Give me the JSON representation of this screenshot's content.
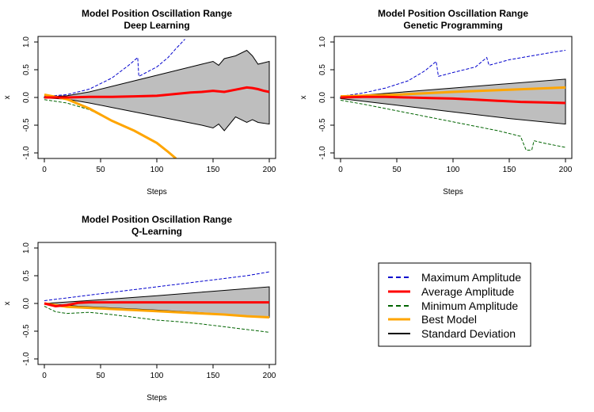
{
  "chart_data": [
    {
      "type": "line",
      "title": "Model Position Oscillation Range",
      "subtitle": "Deep Learning",
      "xlabel": "Steps",
      "ylabel": "x",
      "xlim": [
        0,
        200
      ],
      "ylim": [
        -1.0,
        1.0
      ],
      "xticks": [
        "0",
        "50",
        "100",
        "150",
        "200"
      ],
      "yticks": [
        "-1.0",
        "-0.5",
        "0.0",
        "0.5",
        "1.0"
      ],
      "grid": false,
      "series": [
        {
          "name": "Maximum Amplitude",
          "color": "#0000cd",
          "style": "dashed",
          "x": [
            0,
            20,
            40,
            60,
            75,
            83,
            84,
            100,
            110,
            117,
            125
          ],
          "y": [
            0.02,
            0.05,
            0.15,
            0.35,
            0.58,
            0.72,
            0.38,
            0.55,
            0.72,
            0.88,
            1.05
          ]
        },
        {
          "name": "Average Amplitude",
          "color": "#ff0000",
          "style": "solid",
          "x": [
            0,
            20,
            40,
            60,
            80,
            100,
            110,
            120,
            130,
            140,
            150,
            160,
            170,
            180,
            185,
            190,
            195,
            200
          ],
          "y": [
            0.0,
            0.0,
            0.01,
            0.01,
            0.02,
            0.03,
            0.05,
            0.07,
            0.09,
            0.1,
            0.12,
            0.1,
            0.14,
            0.18,
            0.17,
            0.15,
            0.12,
            0.1
          ]
        },
        {
          "name": "Minimum Amplitude",
          "color": "#006400",
          "style": "dashed",
          "x": [
            0,
            20,
            40,
            60,
            80,
            100,
            110,
            117
          ],
          "y": [
            -0.04,
            -0.1,
            -0.22,
            -0.42,
            -0.6,
            -0.82,
            -0.97,
            -1.1
          ]
        },
        {
          "name": "Best Model",
          "color": "#ffa500",
          "style": "solid",
          "x": [
            0,
            20,
            40,
            60,
            80,
            100,
            110,
            117
          ],
          "y": [
            0.05,
            -0.03,
            -0.2,
            -0.42,
            -0.6,
            -0.82,
            -0.98,
            -1.1
          ]
        },
        {
          "name": "Standard Deviation",
          "color": "#000000",
          "fill": "#bebebe",
          "style": "band",
          "x": [
            0,
            20,
            40,
            60,
            80,
            100,
            120,
            140,
            150,
            155,
            160,
            170,
            180,
            185,
            190,
            200
          ],
          "upper": [
            0.01,
            0.03,
            0.1,
            0.2,
            0.3,
            0.4,
            0.5,
            0.6,
            0.65,
            0.58,
            0.7,
            0.75,
            0.85,
            0.75,
            0.6,
            0.65
          ],
          "lower": [
            -0.01,
            -0.03,
            -0.1,
            -0.18,
            -0.26,
            -0.34,
            -0.42,
            -0.5,
            -0.55,
            -0.48,
            -0.6,
            -0.35,
            -0.45,
            -0.4,
            -0.45,
            -0.48
          ]
        }
      ]
    },
    {
      "type": "line",
      "title": "Model Position Oscillation Range",
      "subtitle": "Genetic Programming",
      "xlabel": "Steps",
      "ylabel": "x",
      "xlim": [
        0,
        200
      ],
      "ylim": [
        -1.0,
        1.0
      ],
      "xticks": [
        "0",
        "50",
        "100",
        "150",
        "200"
      ],
      "yticks": [
        "-1.0",
        "-0.5",
        "0.0",
        "0.5",
        "1.0"
      ],
      "grid": false,
      "series": [
        {
          "name": "Maximum Amplitude",
          "color": "#0000cd",
          "style": "dashed",
          "x": [
            0,
            20,
            40,
            60,
            75,
            85,
            87,
            100,
            120,
            130,
            132,
            150,
            170,
            190,
            200
          ],
          "y": [
            0.02,
            0.08,
            0.17,
            0.3,
            0.48,
            0.65,
            0.38,
            0.45,
            0.55,
            0.72,
            0.58,
            0.68,
            0.75,
            0.82,
            0.85
          ]
        },
        {
          "name": "Average Amplitude",
          "color": "#ff0000",
          "style": "solid",
          "x": [
            0,
            20,
            40,
            60,
            80,
            100,
            120,
            140,
            160,
            180,
            200
          ],
          "y": [
            0.0,
            0.01,
            0.01,
            0.0,
            -0.01,
            -0.02,
            -0.04,
            -0.06,
            -0.08,
            -0.09,
            -0.1
          ]
        },
        {
          "name": "Minimum Amplitude",
          "color": "#006400",
          "style": "dashed",
          "x": [
            0,
            20,
            40,
            60,
            80,
            100,
            120,
            140,
            160,
            165,
            170,
            172,
            180,
            200
          ],
          "y": [
            -0.05,
            -0.12,
            -0.2,
            -0.28,
            -0.36,
            -0.44,
            -0.52,
            -0.6,
            -0.7,
            -0.95,
            -0.95,
            -0.78,
            -0.82,
            -0.9
          ]
        },
        {
          "name": "Best Model",
          "color": "#ffa500",
          "style": "solid",
          "x": [
            0,
            50,
            100,
            150,
            200
          ],
          "y": [
            0.02,
            0.05,
            0.1,
            0.14,
            0.18
          ]
        },
        {
          "name": "Standard Deviation",
          "color": "#000000",
          "fill": "#bebebe",
          "style": "band",
          "x": [
            0,
            50,
            100,
            150,
            200
          ],
          "upper": [
            0.01,
            0.09,
            0.17,
            0.25,
            0.33
          ],
          "lower": [
            -0.02,
            -0.14,
            -0.26,
            -0.38,
            -0.48
          ]
        }
      ]
    },
    {
      "type": "line",
      "title": "Model Position Oscillation Range",
      "subtitle": "Q-Learning",
      "xlabel": "Steps",
      "ylabel": "x",
      "xlim": [
        0,
        200
      ],
      "ylim": [
        -1.0,
        1.0
      ],
      "xticks": [
        "0",
        "50",
        "100",
        "150",
        "200"
      ],
      "yticks": [
        "-1.0",
        "-0.5",
        "0.0",
        "0.5",
        "1.0"
      ],
      "grid": false,
      "series": [
        {
          "name": "Maximum Amplitude",
          "color": "#0000cd",
          "style": "dashed",
          "x": [
            0,
            20,
            40,
            60,
            80,
            100,
            120,
            140,
            160,
            180,
            200
          ],
          "y": [
            0.05,
            0.1,
            0.15,
            0.2,
            0.25,
            0.3,
            0.35,
            0.4,
            0.45,
            0.5,
            0.57
          ]
        },
        {
          "name": "Average Amplitude",
          "color": "#ff0000",
          "style": "solid",
          "x": [
            0,
            10,
            20,
            30,
            40,
            100,
            200
          ],
          "y": [
            0.0,
            -0.05,
            -0.03,
            0.01,
            0.02,
            0.02,
            0.02
          ]
        },
        {
          "name": "Minimum Amplitude",
          "color": "#006400",
          "style": "dashed",
          "x": [
            0,
            10,
            20,
            40,
            60,
            80,
            100,
            120,
            140,
            160,
            180,
            200
          ],
          "y": [
            -0.05,
            -0.15,
            -0.18,
            -0.16,
            -0.2,
            -0.25,
            -0.3,
            -0.33,
            -0.37,
            -0.42,
            -0.47,
            -0.52
          ]
        },
        {
          "name": "Best Model",
          "color": "#ffa500",
          "style": "solid",
          "x": [
            0,
            20,
            40,
            60,
            80,
            100,
            120,
            140,
            160,
            180,
            200
          ],
          "y": [
            0.0,
            -0.06,
            -0.08,
            -0.1,
            -0.12,
            -0.14,
            -0.16,
            -0.18,
            -0.2,
            -0.23,
            -0.25
          ]
        },
        {
          "name": "Standard Deviation",
          "color": "#000000",
          "fill": "#bebebe",
          "style": "band",
          "x": [
            0,
            30,
            60,
            100,
            150,
            200
          ],
          "upper": [
            0.0,
            0.04,
            0.08,
            0.14,
            0.22,
            0.3
          ],
          "lower": [
            0.0,
            -0.05,
            -0.08,
            -0.12,
            -0.18,
            -0.25
          ]
        }
      ]
    }
  ],
  "legend": {
    "placement": "bottom-right panel",
    "items": [
      {
        "label": "Maximum Amplitude",
        "color": "#0000cd",
        "style": "dashed"
      },
      {
        "label": "Average Amplitude",
        "color": "#ff0000",
        "style": "solid"
      },
      {
        "label": "Minimum Amplitude",
        "color": "#006400",
        "style": "dashed"
      },
      {
        "label": "Best Model",
        "color": "#ffa500",
        "style": "solid"
      },
      {
        "label": "Standard Deviation",
        "color": "#000000",
        "style": "solid"
      }
    ]
  }
}
